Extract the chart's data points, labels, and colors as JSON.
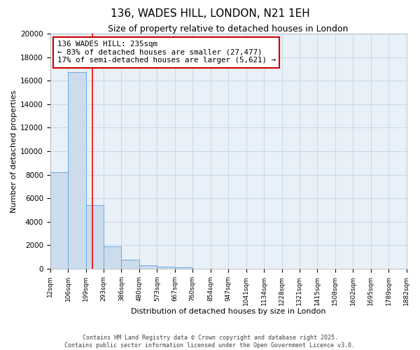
{
  "title": "136, WADES HILL, LONDON, N21 1EH",
  "subtitle": "Size of property relative to detached houses in London",
  "xlabel": "Distribution of detached houses by size in London",
  "ylabel": "Number of detached properties",
  "bar_values": [
    8200,
    16700,
    5400,
    1900,
    750,
    300,
    200,
    100,
    0,
    0,
    0,
    0,
    0,
    0,
    0,
    0,
    0,
    0,
    0,
    0
  ],
  "bin_edges": [
    12,
    106,
    199,
    293,
    386,
    480,
    573,
    667,
    760,
    854,
    947,
    1041,
    1134,
    1228,
    1321,
    1415,
    1508,
    1602,
    1695,
    1789,
    1882
  ],
  "bar_color": "#ccdcec",
  "bar_edge_color": "#6aabe0",
  "red_line_x": 235,
  "annotation_title": "136 WADES HILL: 235sqm",
  "annotation_line1": "← 83% of detached houses are smaller (27,477)",
  "annotation_line2": "17% of semi-detached houses are larger (5,621) →",
  "annotation_box_color": "#cc0000",
  "ylim": [
    0,
    20000
  ],
  "yticks": [
    0,
    2000,
    4000,
    6000,
    8000,
    10000,
    12000,
    14000,
    16000,
    18000,
    20000
  ],
  "grid_color": "#c8d8e8",
  "background_color": "#e8f0f8",
  "footer_line1": "Contains HM Land Registry data © Crown copyright and database right 2025.",
  "footer_line2": "Contains public sector information licensed under the Open Government Licence v3.0."
}
